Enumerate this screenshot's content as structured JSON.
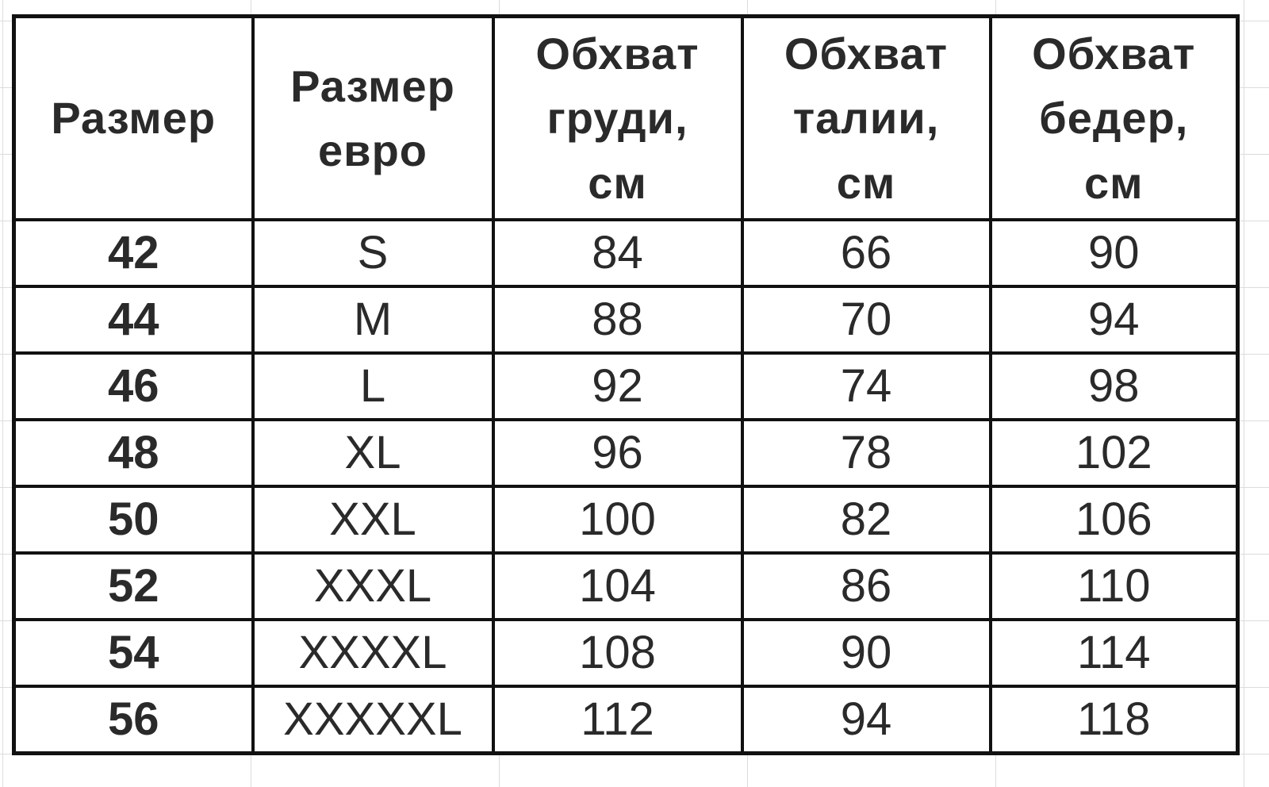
{
  "table": {
    "headers": [
      "Размер",
      "Размер евро",
      "Обхват груди, см",
      "Обхват талии, см",
      "Обхват бедер, см"
    ],
    "header_lines": [
      [
        "Размер"
      ],
      [
        "Размер",
        "евро"
      ],
      [
        "Обхват",
        "груди,",
        "см"
      ],
      [
        "Обхват",
        "талии,",
        "см"
      ],
      [
        "Обхват",
        "бедер,",
        "см"
      ]
    ],
    "rows": [
      [
        "42",
        "S",
        "84",
        "66",
        "90"
      ],
      [
        "44",
        "M",
        "88",
        "70",
        "94"
      ],
      [
        "46",
        "L",
        "92",
        "74",
        "98"
      ],
      [
        "48",
        "XL",
        "96",
        "78",
        "102"
      ],
      [
        "50",
        "XXL",
        "100",
        "82",
        "106"
      ],
      [
        "52",
        "XXXL",
        "104",
        "86",
        "110"
      ],
      [
        "54",
        "XXXXL",
        "108",
        "90",
        "114"
      ],
      [
        "56",
        "XXXXXL",
        "112",
        "94",
        "118"
      ]
    ]
  }
}
